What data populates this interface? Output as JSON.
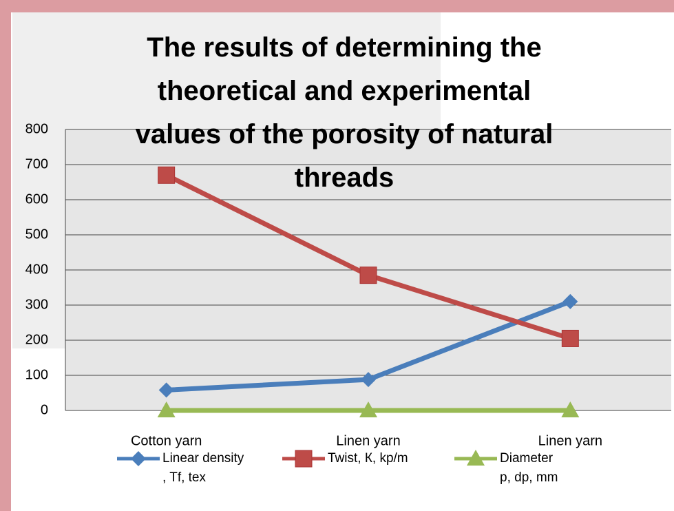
{
  "chart_data": {
    "type": "line",
    "title": "The results of determining the\ntheoretical and experimental\nvalues of the porosity of natural\nthreads",
    "categories": [
      "Cotton yarn",
      "Linen yarn",
      "Linen yarn"
    ],
    "series": [
      {
        "name": "Linear density\n, Tf, tex",
        "color": "#4a7ebb",
        "marker": "diamond",
        "values": [
          58,
          88,
          310
        ]
      },
      {
        "name": "Twist, К, kp/m",
        "color": "#be4b48",
        "marker": "square",
        "values": [
          670,
          385,
          205
        ]
      },
      {
        "name": "Diameter\np, dp, mm",
        "color": "#98b954",
        "marker": "triangle",
        "values": [
          0,
          0,
          0
        ]
      }
    ],
    "ylim": [
      0,
      800
    ],
    "yticks": [
      0,
      100,
      200,
      300,
      400,
      500,
      600,
      700,
      800
    ],
    "grid": true,
    "legend": "bottom"
  }
}
